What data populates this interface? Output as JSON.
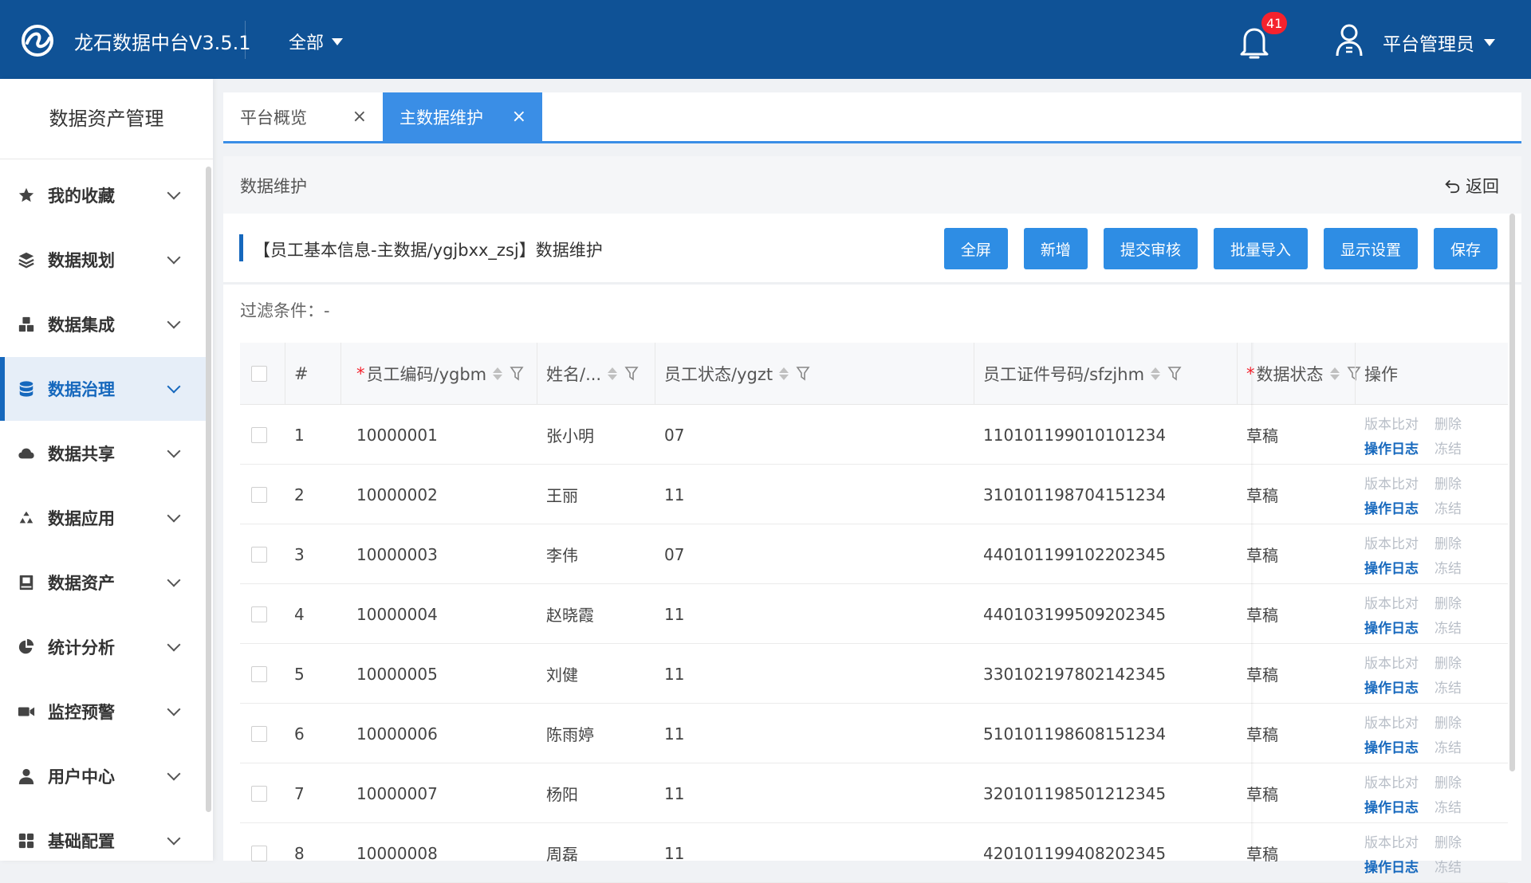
{
  "header": {
    "app_title": "龙石数据中台V3.5.1",
    "scope": "全部",
    "notification_count": "41",
    "user_name": "平台管理员"
  },
  "sidebar": {
    "title": "数据资产管理",
    "items": [
      {
        "label": "我的收藏",
        "icon": "star-icon",
        "active": false
      },
      {
        "label": "数据规划",
        "icon": "layers-icon",
        "active": false
      },
      {
        "label": "数据集成",
        "icon": "cubes-icon",
        "active": false
      },
      {
        "label": "数据治理",
        "icon": "database-icon",
        "active": true
      },
      {
        "label": "数据共享",
        "icon": "cloud-icon",
        "active": false
      },
      {
        "label": "数据应用",
        "icon": "recycle-icon",
        "active": false
      },
      {
        "label": "数据资产",
        "icon": "book-icon",
        "active": false
      },
      {
        "label": "统计分析",
        "icon": "pie-chart-icon",
        "active": false
      },
      {
        "label": "监控预警",
        "icon": "video-icon",
        "active": false
      },
      {
        "label": "用户中心",
        "icon": "user-icon",
        "active": false
      },
      {
        "label": "基础配置",
        "icon": "grid-icon",
        "active": false
      }
    ]
  },
  "tabs": [
    {
      "label": "平台概览",
      "close": "×",
      "active": false
    },
    {
      "label": "主数据维护",
      "close": "×",
      "active": true
    }
  ],
  "panel": {
    "title": "数据维护",
    "back_label": "返回"
  },
  "form": {
    "title": "【员工基本信息-主数据/ygjbxx_zsj】数据维护",
    "buttons": [
      "全屏",
      "新增",
      "提交审核",
      "批量导入",
      "显示设置",
      "保存"
    ],
    "filter_text": "过滤条件：-"
  },
  "table": {
    "columns": {
      "index": "#",
      "code": "员工编码/ygbm",
      "name": "姓名/...",
      "status": "员工状态/ygzt",
      "id_no": "员工证件号码/sfzjhm",
      "data_status": "数据状态",
      "ops": "操作"
    },
    "required_mark": "*",
    "actions": {
      "compare": "版本比对",
      "delete": "删除",
      "log": "操作日志",
      "freeze": "冻结"
    },
    "rows": [
      {
        "index": "1",
        "code": "10000001",
        "name": "张小明",
        "status": "07",
        "id_no": "110101199010101234",
        "data_status": "草稿"
      },
      {
        "index": "2",
        "code": "10000002",
        "name": "王丽",
        "status": "11",
        "id_no": "310101198704151234",
        "data_status": "草稿"
      },
      {
        "index": "3",
        "code": "10000003",
        "name": "李伟",
        "status": "07",
        "id_no": "440101199102202345",
        "data_status": "草稿"
      },
      {
        "index": "4",
        "code": "10000004",
        "name": "赵晓霞",
        "status": "11",
        "id_no": "440103199509202345",
        "data_status": "草稿"
      },
      {
        "index": "5",
        "code": "10000005",
        "name": "刘健",
        "status": "11",
        "id_no": "330102197802142345",
        "data_status": "草稿"
      },
      {
        "index": "6",
        "code": "10000006",
        "name": "陈雨婷",
        "status": "11",
        "id_no": "510101198608151234",
        "data_status": "草稿"
      },
      {
        "index": "7",
        "code": "10000007",
        "name": "杨阳",
        "status": "11",
        "id_no": "320101198501212345",
        "data_status": "草稿"
      },
      {
        "index": "8",
        "code": "10000008",
        "name": "周磊",
        "status": "11",
        "id_no": "420101199408202345",
        "data_status": "草稿"
      }
    ]
  },
  "colors": {
    "header_bg": "#0f5296",
    "accent": "#1668bd",
    "button_bg": "#2e8de4",
    "tab_active": "#3a8ee6",
    "badge": "#f5222d"
  }
}
